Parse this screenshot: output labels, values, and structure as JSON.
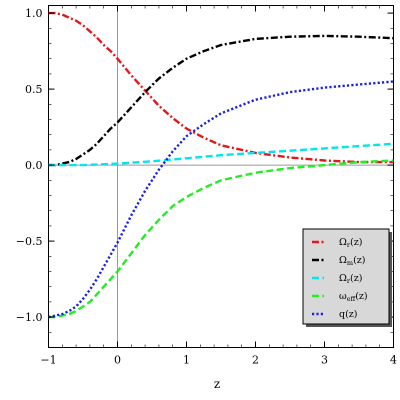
{
  "chart_data": {
    "type": "line",
    "title": "",
    "xlabel": "z",
    "ylabel": "",
    "xlim": [
      -1,
      4
    ],
    "ylim": [
      -1.2,
      1.05
    ],
    "xticks": [
      -1,
      0,
      1,
      2,
      3,
      4
    ],
    "xtick_labels": [
      "−1",
      "0",
      "1",
      "2",
      "3",
      "4"
    ],
    "yticks": [
      -1.0,
      -0.5,
      0.0,
      0.5,
      1.0
    ],
    "ytick_labels": [
      "−1.0",
      "−0.5",
      "0.0",
      "0.5",
      "1.0"
    ],
    "grid": false,
    "legend_position": "bottom-right",
    "series": [
      {
        "name": "Ωr(z)",
        "label_main": "Ω",
        "label_sub": "r",
        "label_tail": "(z)",
        "color": "#e0191c",
        "dash": "dash-dot",
        "x": [
          -1,
          -0.9,
          -0.8,
          -0.7,
          -0.6,
          -0.5,
          -0.4,
          -0.3,
          -0.2,
          -0.1,
          0,
          0.2,
          0.4,
          0.6,
          0.8,
          1.0,
          1.25,
          1.5,
          2.0,
          2.5,
          3.0,
          3.5,
          4.0
        ],
        "y": [
          1.0,
          1.0,
          0.99,
          0.97,
          0.95,
          0.92,
          0.88,
          0.84,
          0.79,
          0.75,
          0.7,
          0.59,
          0.49,
          0.39,
          0.31,
          0.24,
          0.18,
          0.13,
          0.08,
          0.05,
          0.03,
          0.02,
          0.02
        ]
      },
      {
        "name": "Ωm(z)",
        "label_main": "Ω",
        "label_sub": "m",
        "label_tail": "(z)",
        "color": "#000000",
        "dash": "dash-dot",
        "x": [
          -1,
          -0.9,
          -0.8,
          -0.7,
          -0.6,
          -0.5,
          -0.4,
          -0.3,
          -0.2,
          -0.1,
          0,
          0.2,
          0.4,
          0.6,
          0.8,
          1.0,
          1.25,
          1.5,
          2.0,
          2.5,
          3.0,
          3.5,
          4.0
        ],
        "y": [
          0.0,
          0.0,
          0.01,
          0.02,
          0.04,
          0.07,
          0.1,
          0.14,
          0.19,
          0.24,
          0.28,
          0.38,
          0.48,
          0.57,
          0.64,
          0.7,
          0.75,
          0.79,
          0.83,
          0.845,
          0.85,
          0.845,
          0.835
        ]
      },
      {
        "name": "Ωr(z)",
        "label_main": "Ω",
        "label_sub": "r",
        "label_tail": "(z)",
        "color": "#00e5ee",
        "dash": "dash",
        "x": [
          -1,
          -0.5,
          0,
          0.5,
          1.0,
          1.5,
          2.0,
          2.5,
          3.0,
          3.5,
          4.0
        ],
        "y": [
          0.0,
          0.0,
          0.01,
          0.025,
          0.045,
          0.065,
          0.08,
          0.095,
          0.11,
          0.125,
          0.14
        ]
      },
      {
        "name": "ωeff(z)",
        "label_main": "ω",
        "label_sub": "eff",
        "label_tail": "(z)",
        "color": "#22ee22",
        "dash": "dash",
        "x": [
          -1,
          -0.9,
          -0.8,
          -0.7,
          -0.6,
          -0.5,
          -0.4,
          -0.3,
          -0.2,
          -0.1,
          0,
          0.2,
          0.4,
          0.6,
          0.8,
          1.0,
          1.25,
          1.5,
          2.0,
          2.5,
          3.0,
          3.5,
          4.0
        ],
        "y": [
          -1.0,
          -1.0,
          -0.99,
          -0.98,
          -0.96,
          -0.93,
          -0.9,
          -0.85,
          -0.8,
          -0.75,
          -0.7,
          -0.58,
          -0.46,
          -0.36,
          -0.27,
          -0.21,
          -0.15,
          -0.1,
          -0.05,
          -0.02,
          0.0,
          0.02,
          0.03
        ]
      },
      {
        "name": "q(z)",
        "label_main": "q(z)",
        "label_sub": "",
        "label_tail": "",
        "color": "#1a22dd",
        "dash": "dot",
        "x": [
          -1,
          -0.9,
          -0.8,
          -0.7,
          -0.6,
          -0.5,
          -0.4,
          -0.3,
          -0.2,
          -0.1,
          0,
          0.2,
          0.4,
          0.6,
          0.8,
          1.0,
          1.25,
          1.5,
          2.0,
          2.5,
          3.0,
          3.5,
          4.0
        ],
        "y": [
          -1.0,
          -0.99,
          -0.98,
          -0.96,
          -0.93,
          -0.88,
          -0.82,
          -0.75,
          -0.67,
          -0.59,
          -0.51,
          -0.33,
          -0.17,
          -0.03,
          0.09,
          0.19,
          0.27,
          0.34,
          0.43,
          0.48,
          0.51,
          0.53,
          0.55
        ]
      }
    ]
  }
}
